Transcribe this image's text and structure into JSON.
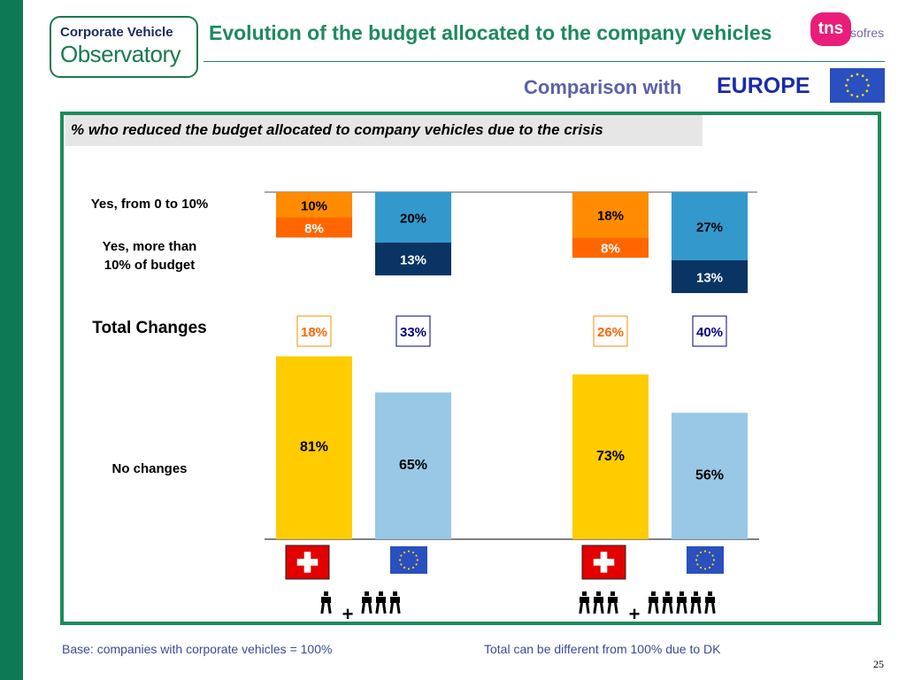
{
  "header": {
    "logo_line1": "Corporate Vehicle",
    "logo_line2": "Observatory",
    "title": "Evolution of the budget allocated to the company vehicles",
    "tns_brand": "tns",
    "tns_sub": "sofres",
    "comparison": "Comparison with",
    "region": "EUROPE"
  },
  "question": "% who reduced the budget allocated to company vehicles due to the crisis",
  "row_labels": {
    "yes_0_10": "Yes, from 0 to 10%",
    "yes_more_10_line1": "Yes, more than",
    "yes_more_10_line2": "10% of budget",
    "total_changes": "Total Changes",
    "no_changes": "No changes"
  },
  "footer": {
    "base": "Base: companies with corporate vehicles = 100%",
    "dk_note": "Total can be different from 100% due to DK",
    "page_number": "25"
  },
  "colors": {
    "ch_yes_0_10": "#ff8c00",
    "ch_yes_more_10": "#ff6600",
    "eu_yes_0_10": "#3399cc",
    "eu_yes_more_10": "#0a3464",
    "ch_no_changes": "#ffcc00",
    "eu_no_changes": "#99c8e6",
    "ch_total_text": "#ff6600",
    "eu_total_text": "#000080",
    "switzerland_flag": "#e30000",
    "eu_flag": "#2a4fbf",
    "accent_green": "#1e8a5c"
  },
  "chart_data": {
    "type": "bar",
    "title": "% who reduced the budget allocated to company vehicles due to the crisis",
    "groups": [
      {
        "people_left": 1,
        "people_right": 3,
        "bars": [
          {
            "region": "switzerland",
            "yes_0_10": 10,
            "yes_more_10": 8,
            "total_changes": 18,
            "no_changes": 81
          },
          {
            "region": "europe",
            "yes_0_10": 20,
            "yes_more_10": 13,
            "total_changes": 33,
            "no_changes": 65
          }
        ]
      },
      {
        "people_left": 3,
        "people_right": 5,
        "bars": [
          {
            "region": "switzerland",
            "yes_0_10": 18,
            "yes_more_10": 8,
            "total_changes": 26,
            "no_changes": 73
          },
          {
            "region": "europe",
            "yes_0_10": 27,
            "yes_more_10": 13,
            "total_changes": 40,
            "no_changes": 56
          }
        ]
      }
    ],
    "value_format": "{v}%",
    "group_connector": "+"
  }
}
